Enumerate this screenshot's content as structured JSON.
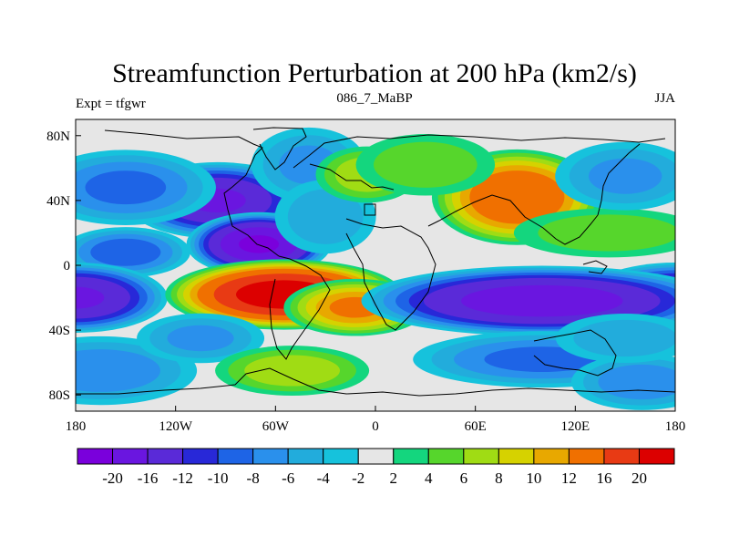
{
  "chart_data": {
    "type": "heatmap",
    "title": "Streamfunction Perturbation at 200 hPa (km2/s)",
    "left_label": "Expt = tfgwr",
    "center_label": "086_7_MaBP",
    "right_label": "JJA",
    "x_ticks": [
      {
        "value": -180,
        "label": "180"
      },
      {
        "value": -120,
        "label": "120W"
      },
      {
        "value": -60,
        "label": "60W"
      },
      {
        "value": 0,
        "label": "0"
      },
      {
        "value": 60,
        "label": "60E"
      },
      {
        "value": 120,
        "label": "120E"
      },
      {
        "value": 180,
        "label": "180"
      }
    ],
    "y_ticks": [
      {
        "value": 80,
        "label": "80N"
      },
      {
        "value": 40,
        "label": "40N"
      },
      {
        "value": 0,
        "label": "0"
      },
      {
        "value": -40,
        "label": "40S"
      },
      {
        "value": -80,
        "label": "80S"
      }
    ],
    "xlim": [
      -180,
      180
    ],
    "ylim": [
      -90,
      90
    ],
    "colorbar": {
      "colors": [
        "#7a00dc",
        "#6a16e0",
        "#5a2ad8",
        "#2828d8",
        "#1e64e6",
        "#2a90ec",
        "#22acdc",
        "#16c2dc",
        "#e6e6e6",
        "#14d67e",
        "#56d62c",
        "#a0dc14",
        "#d6d200",
        "#e8a800",
        "#f07000",
        "#e83a14",
        "#dc0000"
      ],
      "labels": [
        "-20",
        "-16",
        "-12",
        "-10",
        "-8",
        "-6",
        "-4",
        "-2",
        "2",
        "4",
        "6",
        "8",
        "10",
        "12",
        "16",
        "20"
      ]
    },
    "anomalies": [
      {
        "lon": -95,
        "lat": 40,
        "value": -16,
        "rlon": 28,
        "rlat": 12
      },
      {
        "lon": -70,
        "lat": 13,
        "value": -20,
        "rlon": 22,
        "rlat": 10
      },
      {
        "lon": -150,
        "lat": 48,
        "value": -8,
        "rlon": 28,
        "rlat": 12
      },
      {
        "lon": -150,
        "lat": 8,
        "value": -9,
        "rlon": 20,
        "rlat": 8
      },
      {
        "lon": -180,
        "lat": -20,
        "value": -16,
        "rlon": 28,
        "rlat": 11
      },
      {
        "lon": 180,
        "lat": -20,
        "value": -16,
        "rlon": 28,
        "rlat": 11
      },
      {
        "lon": -165,
        "lat": -65,
        "value": -7,
        "rlon": 30,
        "rlat": 11
      },
      {
        "lon": -40,
        "lat": 62,
        "value": -6,
        "rlon": 18,
        "rlat": 12
      },
      {
        "lon": -30,
        "lat": 30,
        "value": -5,
        "rlon": 16,
        "rlat": 12
      },
      {
        "lon": -55,
        "lat": -18,
        "value": 22,
        "rlon": 36,
        "rlat": 11
      },
      {
        "lon": -12,
        "lat": -26,
        "value": 12,
        "rlon": 22,
        "rlat": 9
      },
      {
        "lon": -105,
        "lat": -45,
        "value": -6,
        "rlon": 20,
        "rlat": 8
      },
      {
        "lon": -50,
        "lat": -65,
        "value": 7,
        "rlon": 24,
        "rlat": 8
      },
      {
        "lon": -5,
        "lat": 56,
        "value": 7,
        "rlon": 16,
        "rlat": 9
      },
      {
        "lon": 85,
        "lat": 42,
        "value": 15,
        "rlon": 26,
        "rlat": 15
      },
      {
        "lon": 30,
        "lat": 62,
        "value": 5,
        "rlon": 22,
        "rlat": 10
      },
      {
        "lon": 100,
        "lat": -22,
        "value": -18,
        "rlon": 55,
        "rlat": 11
      },
      {
        "lon": 140,
        "lat": 20,
        "value": 5,
        "rlon": 30,
        "rlat": 8
      },
      {
        "lon": 150,
        "lat": 55,
        "value": -6,
        "rlon": 22,
        "rlat": 11
      },
      {
        "lon": 100,
        "lat": -58,
        "value": -8,
        "rlon": 40,
        "rlat": 9
      },
      {
        "lon": 160,
        "lat": -72,
        "value": -7,
        "rlon": 22,
        "rlat": 9
      },
      {
        "lon": 150,
        "lat": -45,
        "value": -5,
        "rlon": 22,
        "rlat": 8
      }
    ]
  }
}
